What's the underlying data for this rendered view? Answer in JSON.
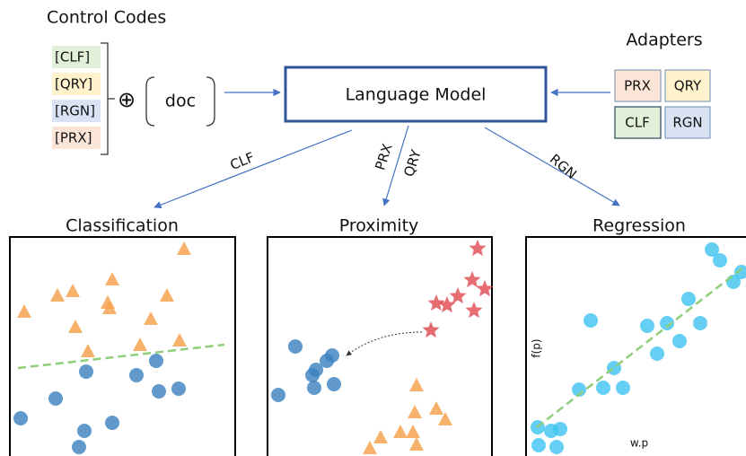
{
  "control_codes": {
    "title": "Control Codes",
    "codes": [
      "[CLF]",
      "[QRY]",
      "[RGN]",
      "[PRX]"
    ],
    "operator": "⊕",
    "doc": "doc"
  },
  "model": {
    "label": "Language Model"
  },
  "adapters": {
    "title": "Adapters",
    "items": [
      "PRX",
      "QRY",
      "CLF",
      "RGN"
    ]
  },
  "edges": {
    "clf": "CLF",
    "prx": "PRX",
    "qry": "QRY",
    "rgn": "RGN"
  },
  "panels": {
    "classification": {
      "title": "Classification"
    },
    "proximity": {
      "title": "Proximity"
    },
    "regression": {
      "title": "Regression",
      "y_label": "f(p)",
      "x_label": "w.p"
    }
  }
}
